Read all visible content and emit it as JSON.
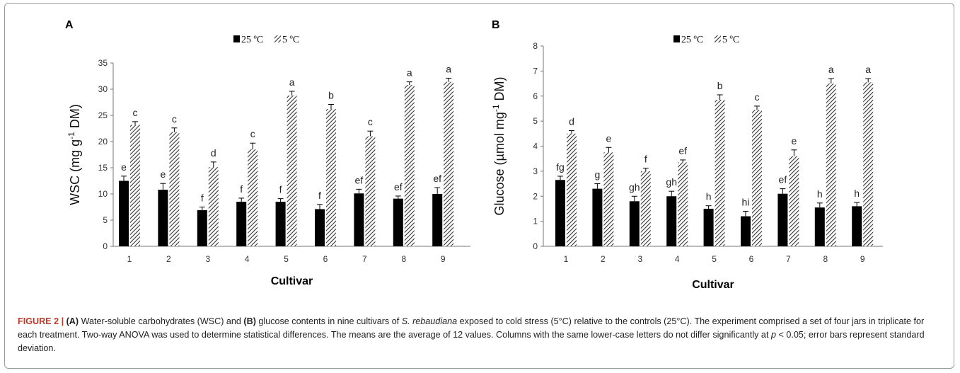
{
  "colors": {
    "bar_25": "#000000",
    "bar_5_hatch": "#3a3a3a",
    "axis": "#777777",
    "caption_label": "#c0392b"
  },
  "chart_data": [
    {
      "panel": "A",
      "type": "bar",
      "xlabel": "Cultivar",
      "ylabel": "WSC (mg g-1 DM)",
      "ylim": [
        0,
        35
      ],
      "yticks": [
        0,
        5,
        10,
        15,
        20,
        25,
        30,
        35
      ],
      "categories": [
        "1",
        "2",
        "3",
        "4",
        "5",
        "6",
        "7",
        "8",
        "9"
      ],
      "legend": [
        "25 ºC",
        "5 ºC"
      ],
      "series": [
        {
          "name": "25 ºC",
          "pattern": "solid",
          "values": [
            12.5,
            10.8,
            6.9,
            8.5,
            8.5,
            7.1,
            10.1,
            9.1,
            10.0
          ],
          "errors": [
            0.9,
            1.2,
            0.6,
            0.7,
            0.6,
            0.9,
            0.8,
            0.5,
            1.2
          ],
          "letters": [
            "e",
            "e",
            "f",
            "f",
            "f",
            "f",
            "ef",
            "ef",
            "ef"
          ]
        },
        {
          "name": "5 ºC",
          "pattern": "hatched",
          "values": [
            23.2,
            21.8,
            15.1,
            18.5,
            28.8,
            26.2,
            21.0,
            30.8,
            31.4
          ],
          "errors": [
            0.6,
            0.8,
            1.0,
            1.2,
            0.8,
            0.9,
            1.0,
            0.6,
            0.7
          ],
          "letters": [
            "c",
            "c",
            "d",
            "c",
            "a",
            "b",
            "c",
            "a",
            "a"
          ]
        }
      ]
    },
    {
      "panel": "B",
      "type": "bar",
      "xlabel": "Cultivar",
      "ylabel": "Glucose (µmol mg-1 DM)",
      "ylim": [
        0,
        8
      ],
      "yticks": [
        0,
        1,
        2,
        3,
        4,
        5,
        6,
        7,
        8
      ],
      "categories": [
        "1",
        "2",
        "3",
        "4",
        "5",
        "6",
        "7",
        "8",
        "9"
      ],
      "legend": [
        "25 ºC",
        "5 ºC"
      ],
      "series": [
        {
          "name": "25 ºC",
          "pattern": "solid",
          "values": [
            2.65,
            2.3,
            1.8,
            2.0,
            1.5,
            1.2,
            2.1,
            1.55,
            1.6
          ],
          "errors": [
            0.15,
            0.2,
            0.2,
            0.2,
            0.12,
            0.2,
            0.2,
            0.18,
            0.15
          ],
          "letters": [
            "fg",
            "g",
            "gh",
            "gh",
            "h",
            "hi",
            "ef",
            "h",
            "h"
          ]
        },
        {
          "name": "5 ºC",
          "pattern": "hatched",
          "values": [
            4.5,
            3.75,
            3.0,
            3.35,
            5.85,
            5.45,
            3.6,
            6.5,
            6.55
          ],
          "errors": [
            0.12,
            0.2,
            0.12,
            0.1,
            0.2,
            0.15,
            0.25,
            0.2,
            0.15
          ],
          "letters": [
            "d",
            "e",
            "f",
            "ef",
            "b",
            "c",
            "e",
            "a",
            "a"
          ]
        }
      ]
    }
  ],
  "caption": {
    "label": "FIGURE 2 |",
    "part_a_tag": "(A)",
    "part_a_text": " Water-soluble carbohydrates (WSC) and ",
    "part_b_tag": "(B)",
    "part_b_text": " glucose contents in nine cultivars of ",
    "species": "S. rebaudiana",
    "text_2": " exposed to cold stress (5°C) relative to the controls (25°C). The experiment comprised a set of four jars in triplicate for each treatment. Two-way ANOVA was used to determine statistical differences. The means are the average of 12 values. Columns with the same lower-case letters do not differ significantly at ",
    "p_symbol": "p",
    "text_3": " < 0.05; error bars represent standard deviation."
  }
}
